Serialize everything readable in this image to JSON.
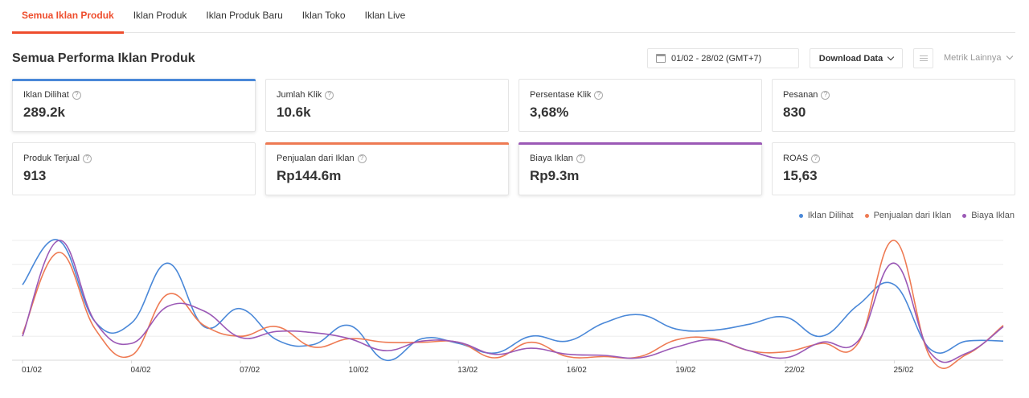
{
  "tabs": [
    {
      "label": "Semua Iklan Produk",
      "active": true
    },
    {
      "label": "Iklan Produk",
      "active": false
    },
    {
      "label": "Iklan Produk Baru",
      "active": false
    },
    {
      "label": "Iklan Toko",
      "active": false
    },
    {
      "label": "Iklan Live",
      "active": false
    }
  ],
  "header": {
    "title": "Semua Performa Iklan Produk",
    "date_range": "01/02 - 28/02 (GMT+7)",
    "download_label": "Download Data",
    "metric_more_label": "Metrik Lainnya"
  },
  "metrics": [
    {
      "label": "Iklan Dilihat",
      "value": "289.2k",
      "selected": true,
      "color": "#4a88d8"
    },
    {
      "label": "Jumlah Klik",
      "value": "10.6k",
      "selected": false
    },
    {
      "label": "Persentase Klik",
      "value": "3,68%",
      "selected": false
    },
    {
      "label": "Pesanan",
      "value": "830",
      "selected": false
    },
    {
      "label": "Produk Terjual",
      "value": "913",
      "selected": false
    },
    {
      "label": "Penjualan dari Iklan",
      "value": "Rp144.6m",
      "selected": true,
      "color": "#ee7a53"
    },
    {
      "label": "Biaya Iklan",
      "value": "Rp9.3m",
      "selected": true,
      "color": "#9b59b6"
    },
    {
      "label": "ROAS",
      "value": "15,63",
      "selected": false
    }
  ],
  "chart_data": {
    "type": "line",
    "x": [
      "01/02",
      "02/02",
      "03/02",
      "04/02",
      "05/02",
      "06/02",
      "07/02",
      "08/02",
      "09/02",
      "10/02",
      "11/02",
      "12/02",
      "13/02",
      "14/02",
      "15/02",
      "16/02",
      "17/02",
      "18/02",
      "19/02",
      "20/02",
      "21/02",
      "22/02",
      "23/02",
      "24/02",
      "25/02",
      "26/02",
      "27/02",
      "28/02"
    ],
    "xticks": [
      "01/02",
      "04/02",
      "07/02",
      "10/02",
      "13/02",
      "16/02",
      "19/02",
      "22/02",
      "25/02"
    ],
    "grid": true,
    "legend_position": "top-right",
    "series": [
      {
        "name": "Iklan Dilihat",
        "color": "#4a88d8",
        "values": [
          0.63,
          1.0,
          0.32,
          0.31,
          0.81,
          0.28,
          0.43,
          0.17,
          0.13,
          0.29,
          0.0,
          0.18,
          0.14,
          0.06,
          0.2,
          0.16,
          0.31,
          0.38,
          0.26,
          0.25,
          0.3,
          0.36,
          0.2,
          0.46,
          0.63,
          0.09,
          0.16,
          0.16
        ]
      },
      {
        "name": "Penjualan dari Iklan",
        "color": "#ee7a53",
        "values": [
          0.22,
          0.9,
          0.26,
          0.04,
          0.55,
          0.29,
          0.2,
          0.28,
          0.11,
          0.18,
          0.15,
          0.15,
          0.15,
          0.02,
          0.15,
          0.03,
          0.03,
          0.03,
          0.17,
          0.18,
          0.08,
          0.07,
          0.14,
          0.14,
          1.0,
          0.02,
          0.05,
          0.29
        ]
      },
      {
        "name": "Biaya Iklan",
        "color": "#9b59b6",
        "values": [
          0.2,
          1.0,
          0.32,
          0.14,
          0.45,
          0.41,
          0.19,
          0.24,
          0.23,
          0.18,
          0.08,
          0.16,
          0.15,
          0.05,
          0.1,
          0.05,
          0.04,
          0.02,
          0.11,
          0.17,
          0.08,
          0.02,
          0.15,
          0.16,
          0.81,
          0.06,
          0.06,
          0.28
        ]
      }
    ]
  }
}
